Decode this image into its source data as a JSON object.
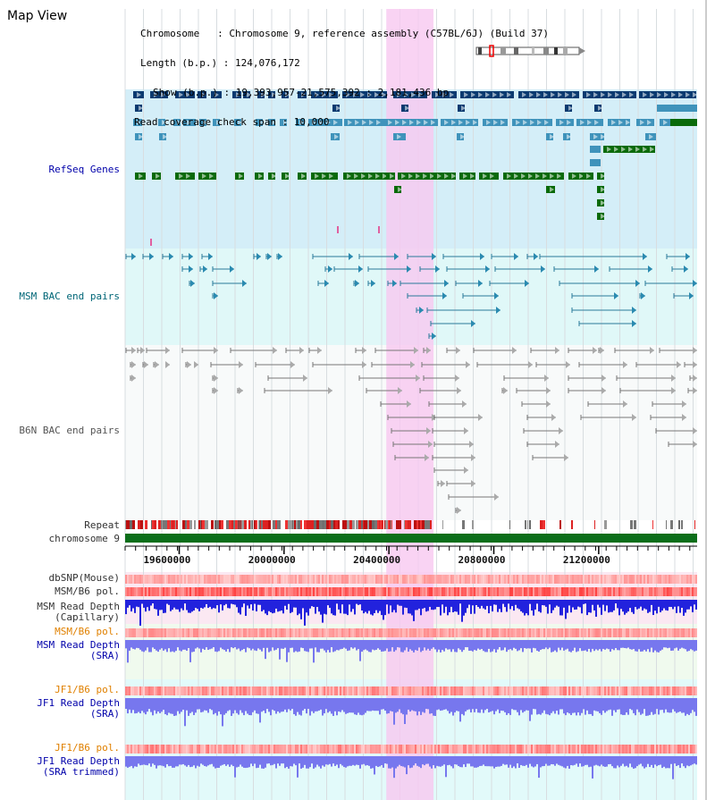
{
  "app": {
    "title": "Map View"
  },
  "header": {
    "chromosome_line": "Chromosome   : Chromosome 9, reference assembly (C57BL/6J) (Build 37)",
    "length_line": "Length (b.p.) : 124,076,172",
    "show_line": "Show (b.p.) : 19,393,957-21,575,392 : 2,181,436 bp",
    "coverage_line": "Read coverage check span : 10,000"
  },
  "tracks": {
    "refseq": "RefSeq Genes",
    "msm_bac": "MSM BAC end pairs",
    "b6n_bac": "B6N BAC end pairs",
    "repeat": "Repeat",
    "chromosome": "chromosome 9",
    "dbsnp": "dbSNP(Mouse)",
    "msm_b6_pol": "MSM/B6 pol.",
    "msm_depth_cap_1": "MSM Read Depth",
    "msm_depth_cap_2": "(Capillary)",
    "msm_b6_pol_2": "MSM/B6 pol.",
    "msm_depth_sra_1": "MSM Read Depth",
    "msm_depth_sra_2": "(SRA)",
    "jf1_b6_pol": "JF1/B6 pol.",
    "jf1_depth_sra_1": "JF1 Read Depth",
    "jf1_depth_sra_2": "(SRA)",
    "jf1_b6_pol_2": "JF1/B6 pol.",
    "jf1_depth_trim_1": "JF1 Read Depth",
    "jf1_depth_trim_2": "(SRA trimmed)"
  },
  "axis": {
    "ticks": [
      "19600000",
      "20000000",
      "20400000",
      "20800000",
      "21200000"
    ],
    "tick_values": [
      19600000,
      20000000,
      20400000,
      20800000,
      21200000
    ],
    "start": 19393957,
    "end": 21575392
  },
  "highlight": {
    "start": 20390000,
    "end": 20570000,
    "color": "#f7c8f0"
  },
  "colors": {
    "refseq_bg": "#d4eef8",
    "msm_bg": "#e0f8f8",
    "b6n_bg": "#f8fafa",
    "pink_bg": "#fbe8f2",
    "green_bg": "#f0faee",
    "cyan_bg": "#e2fafa",
    "refseq_navy": "#0a3a70",
    "refseq_blue": "#3f93bb",
    "refseq_green": "#0a6a0a",
    "msm_line": "#2a7a9a",
    "b6n_line": "#777777",
    "chromosome_bar": "#0b6e1a",
    "depth_blue": "#2222dd",
    "depth_light": "#7777ee"
  }
}
